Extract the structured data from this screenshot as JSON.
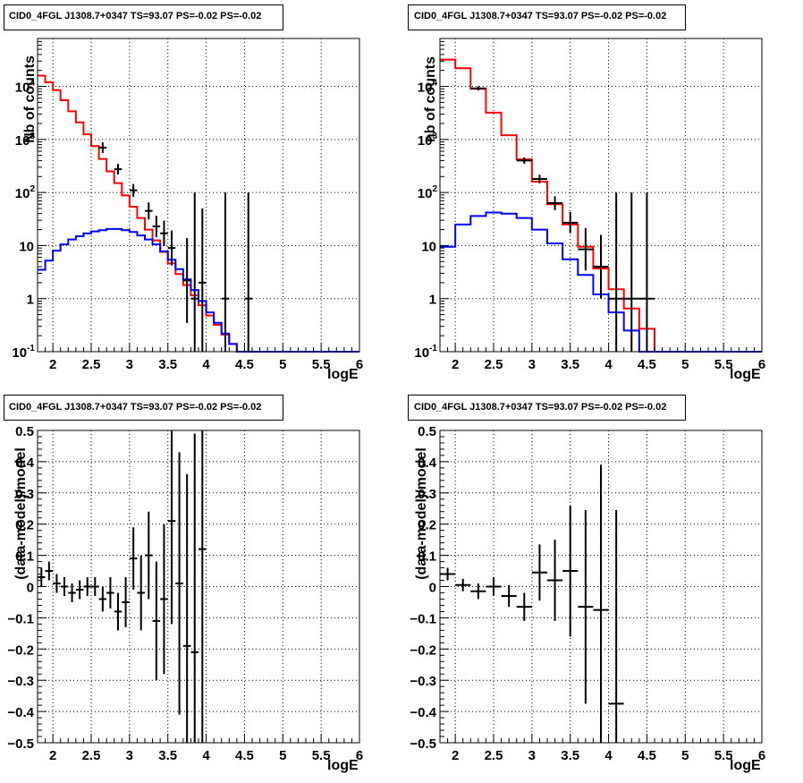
{
  "chart_data": [
    {
      "type": "line",
      "title": "CID0_4FGL J1308.7+0347 TS=93.07 PS=-0.02 PS=-0.02",
      "xlabel": "logE",
      "ylabel": "Nb of counts",
      "xlim": [
        1.8,
        6.0
      ],
      "ylim": [
        0.1,
        80000
      ],
      "yscale": "log",
      "grid": true,
      "x_ticks": [
        "2",
        "2.5",
        "3",
        "3.5",
        "4",
        "4.5",
        "5",
        "5.5",
        "6"
      ],
      "y_ticks": [
        "10^-1",
        "1",
        "10",
        "10^2",
        "10^3",
        "10^4"
      ],
      "bin_edges": [
        1.8,
        1.9,
        2.0,
        2.1,
        2.2,
        2.3,
        2.4,
        2.5,
        2.6,
        2.7,
        2.8,
        2.9,
        3.0,
        3.1,
        3.2,
        3.3,
        3.4,
        3.5,
        3.6,
        3.7,
        3.8,
        3.9,
        4.0,
        4.1,
        4.2,
        4.3,
        4.4,
        4.5,
        4.6,
        4.7,
        4.8,
        4.9,
        5.0,
        5.1,
        5.2,
        5.3,
        5.4,
        5.5,
        5.6,
        5.7,
        5.8,
        5.9,
        6.0
      ],
      "series": [
        {
          "color": "#ff0000",
          "values": [
            16000,
            12000,
            8500,
            5500,
            3400,
            2100,
            1250,
            750,
            430,
            250,
            150,
            88,
            54,
            33,
            20,
            12.5,
            7.6,
            4.6,
            2.9,
            1.8,
            1.15,
            0.75,
            0.48,
            0.32,
            0.21,
            0.14,
            0.1,
            0.1,
            0.1,
            0.1,
            0.1,
            0.1,
            0.1,
            0.1,
            0.1,
            0.1,
            0.1,
            0.1,
            0.1,
            0.1,
            0.1,
            0.1
          ]
        },
        {
          "color": "#0000ff",
          "values": [
            3.5,
            5.2,
            8,
            10.5,
            13,
            15,
            17,
            18.5,
            19.5,
            20.5,
            20.5,
            19.5,
            18,
            15.5,
            13,
            10.5,
            7.8,
            5.4,
            3.6,
            2.3,
            1.45,
            0.9,
            0.55,
            0.35,
            0.22,
            0.14,
            0.1,
            0.1,
            0.1,
            0.1,
            0.1,
            0.1,
            0.1,
            0.1,
            0.1,
            0.1,
            0.1,
            0.1,
            0.1,
            0.1,
            0.1,
            0.1
          ]
        }
      ],
      "data_points": [
        {
          "x": 2.65,
          "y": 700,
          "err": 0.1
        },
        {
          "x": 2.85,
          "y": 275,
          "err": 0.1
        },
        {
          "x": 3.05,
          "y": 110,
          "err": 0.12
        },
        {
          "x": 3.25,
          "y": 45,
          "err": 0.16
        },
        {
          "x": 3.35,
          "y": 23,
          "err": 0.2
        },
        {
          "x": 3.45,
          "y": 17,
          "err": 0.24
        },
        {
          "x": 3.55,
          "y": 9,
          "err": 0.33
        },
        {
          "x": 3.75,
          "y": 2.2,
          "err": 0.8
        },
        {
          "x": 3.85,
          "y": 1.0,
          "err": 2
        },
        {
          "x": 3.95,
          "y": 2.0,
          "err": 1.4
        },
        {
          "x": 4.25,
          "y": 1.0,
          "err": 2
        },
        {
          "x": 4.55,
          "y": 1.0,
          "err": 2
        }
      ]
    },
    {
      "type": "line",
      "title": "CID0_4FGL J1308.7+0347 TS=93.07 PS=-0.02 PS=-0.02",
      "xlabel": "logE",
      "ylabel": "nb of counts",
      "xlim": [
        1.8,
        6.0
      ],
      "ylim": [
        0.1,
        80000
      ],
      "yscale": "log",
      "grid": true,
      "x_ticks": [
        "2",
        "2.5",
        "3",
        "3.5",
        "4",
        "4.5",
        "5",
        "5.5",
        "6"
      ],
      "y_ticks": [
        "10^-1",
        "1",
        "10",
        "10^2",
        "10^3",
        "10^4"
      ],
      "bin_edges": [
        1.8,
        2.0,
        2.2,
        2.4,
        2.6,
        2.8,
        3.0,
        3.2,
        3.4,
        3.6,
        3.8,
        4.0,
        4.2,
        4.4,
        4.6,
        4.8,
        5.0,
        5.2,
        5.4,
        5.6,
        5.8,
        6.0
      ],
      "series": [
        {
          "color": "#ff0000",
          "values": [
            32000,
            22000,
            9000,
            3200,
            1200,
            420,
            160,
            60,
            25,
            9.5,
            3.7,
            1.5,
            0.65,
            0.27,
            0.1,
            0.1,
            0.1,
            0.1,
            0.1,
            0.1,
            0.1
          ]
        },
        {
          "color": "#0000ff",
          "values": [
            9.5,
            25,
            36,
            42,
            40,
            33,
            20,
            11,
            5.5,
            2.8,
            1.2,
            0.55,
            0.25,
            0.1,
            0.1,
            0.1,
            0.1,
            0.1,
            0.1,
            0.1,
            0.1
          ]
        }
      ],
      "data_points": [
        {
          "x": 2.3,
          "y": 9200,
          "err": 0.04
        },
        {
          "x": 2.9,
          "y": 400,
          "err": 0.06
        },
        {
          "x": 3.1,
          "y": 180,
          "err": 0.08
        },
        {
          "x": 3.3,
          "y": 63,
          "err": 0.13
        },
        {
          "x": 3.5,
          "y": 27,
          "err": 0.2
        },
        {
          "x": 3.7,
          "y": 8.5,
          "err": 0.4
        },
        {
          "x": 3.9,
          "y": 4.0,
          "err": 0.6
        },
        {
          "x": 4.1,
          "y": 1.0,
          "err": 2
        },
        {
          "x": 4.3,
          "y": 1.0,
          "err": 2
        },
        {
          "x": 4.5,
          "y": 1.0,
          "err": 2
        }
      ]
    },
    {
      "type": "scatter",
      "title": "CID0_4FGL J1308.7+0347 TS=93.07 PS=-0.02 PS=-0.02",
      "xlabel": "logE",
      "ylabel": "(data-model)/model",
      "xlim": [
        1.8,
        6.0
      ],
      "ylim": [
        -0.5,
        0.5
      ],
      "grid": true,
      "x_ticks": [
        "2",
        "2.5",
        "3",
        "3.5",
        "4",
        "4.5",
        "5",
        "5.5",
        "6"
      ],
      "y_ticks": [
        "-0.5",
        "-0.4",
        "-0.3",
        "-0.2",
        "-0.1",
        "0",
        "0.1",
        "0.2",
        "0.3",
        "0.4",
        "0.5"
      ],
      "bin_width": 0.1,
      "points": [
        {
          "x": 1.85,
          "y": 0.03,
          "err": 0.03
        },
        {
          "x": 1.95,
          "y": 0.05,
          "err": 0.03
        },
        {
          "x": 2.05,
          "y": 0.01,
          "err": 0.03
        },
        {
          "x": 2.15,
          "y": 0.0,
          "err": 0.03
        },
        {
          "x": 2.25,
          "y": -0.02,
          "err": 0.03
        },
        {
          "x": 2.35,
          "y": -0.01,
          "err": 0.03
        },
        {
          "x": 2.45,
          "y": 0.0,
          "err": 0.03
        },
        {
          "x": 2.55,
          "y": 0.0,
          "err": 0.03
        },
        {
          "x": 2.65,
          "y": -0.04,
          "err": 0.04
        },
        {
          "x": 2.75,
          "y": -0.02,
          "err": 0.05
        },
        {
          "x": 2.85,
          "y": -0.08,
          "err": 0.06
        },
        {
          "x": 2.95,
          "y": -0.05,
          "err": 0.08
        },
        {
          "x": 3.05,
          "y": 0.09,
          "err": 0.1
        },
        {
          "x": 3.15,
          "y": -0.02,
          "err": 0.12
        },
        {
          "x": 3.25,
          "y": 0.1,
          "err": 0.14
        },
        {
          "x": 3.35,
          "y": -0.11,
          "err": 0.19
        },
        {
          "x": 3.45,
          "y": -0.04,
          "err": 0.24
        },
        {
          "x": 3.55,
          "y": 0.21,
          "err": 0.33
        },
        {
          "x": 3.65,
          "y": 0.01,
          "err": 0.42
        },
        {
          "x": 3.75,
          "y": -0.19,
          "err": 0.55
        },
        {
          "x": 3.85,
          "y": -0.21,
          "err": 0.7
        },
        {
          "x": 3.95,
          "y": 0.12,
          "err": 0.9
        }
      ]
    },
    {
      "type": "scatter",
      "title": "CID0_4FGL J1308.7+0347 TS=93.07 PS=-0.02 PS=-0.02",
      "xlabel": "logE",
      "ylabel": "(data-model)/model",
      "xlim": [
        1.8,
        6.0
      ],
      "ylim": [
        -0.5,
        0.5
      ],
      "grid": true,
      "x_ticks": [
        "2",
        "2.5",
        "3",
        "3.5",
        "4",
        "4.5",
        "5",
        "5.5",
        "6"
      ],
      "y_ticks": [
        "-0.5",
        "-0.4",
        "-0.3",
        "-0.2",
        "-0.1",
        "0",
        "0.1",
        "0.2",
        "0.3",
        "0.4",
        "0.5"
      ],
      "bin_width": 0.2,
      "points": [
        {
          "x": 1.9,
          "y": 0.04,
          "err": 0.02
        },
        {
          "x": 2.1,
          "y": 0.005,
          "err": 0.02
        },
        {
          "x": 2.3,
          "y": -0.015,
          "err": 0.025
        },
        {
          "x": 2.5,
          "y": 0.0,
          "err": 0.03
        },
        {
          "x": 2.7,
          "y": -0.03,
          "err": 0.035
        },
        {
          "x": 2.9,
          "y": -0.065,
          "err": 0.045
        },
        {
          "x": 3.1,
          "y": 0.045,
          "err": 0.09
        },
        {
          "x": 3.3,
          "y": 0.02,
          "err": 0.13
        },
        {
          "x": 3.5,
          "y": 0.05,
          "err": 0.21
        },
        {
          "x": 3.7,
          "y": -0.065,
          "err": 0.31
        },
        {
          "x": 3.9,
          "y": -0.075,
          "err": 0.465
        },
        {
          "x": 4.1,
          "y": -0.375,
          "err": 0.62
        }
      ]
    }
  ]
}
